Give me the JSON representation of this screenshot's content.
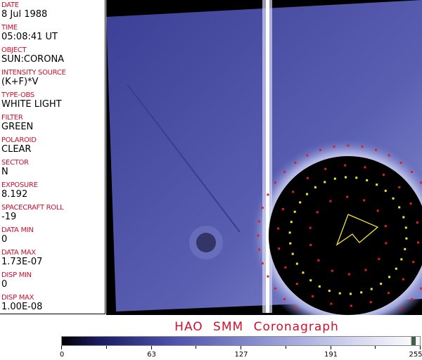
{
  "metadata": [
    {
      "label": "DATE",
      "value": "8 Jul 1988"
    },
    {
      "label": "TIME",
      "value": "05:08:41 UT"
    },
    {
      "label": "OBJECT",
      "value": "SUN:CORONA"
    },
    {
      "label": "INTENSITY SOURCE",
      "value": "(K+F)*V"
    },
    {
      "label": "TYPE-OBS",
      "value": "WHITE LIGHT"
    },
    {
      "label": "FILTER",
      "value": "GREEN"
    },
    {
      "label": "POLAROID",
      "value": "CLEAR"
    },
    {
      "label": "SECTOR",
      "value": "N"
    },
    {
      "label": "EXPOSURE",
      "value": "8.192"
    },
    {
      "label": "SPACECRAFT ROLL",
      "value": "-19"
    },
    {
      "label": "DATA MIN",
      "value": "0"
    },
    {
      "label": "DATA MAX",
      "value": "1.73E-07"
    },
    {
      "label": "DISP MIN",
      "value": "0"
    },
    {
      "label": "DISP MAX",
      "value": "1.00E-08"
    }
  ],
  "title": "HAO  SMM Coronagraph",
  "colorbar": {
    "ticks": [
      "0",
      "63",
      "127",
      "191",
      "255"
    ]
  },
  "colors": {
    "label": "#c8102e",
    "background": "#000000",
    "corona": "#5a5fb0"
  }
}
